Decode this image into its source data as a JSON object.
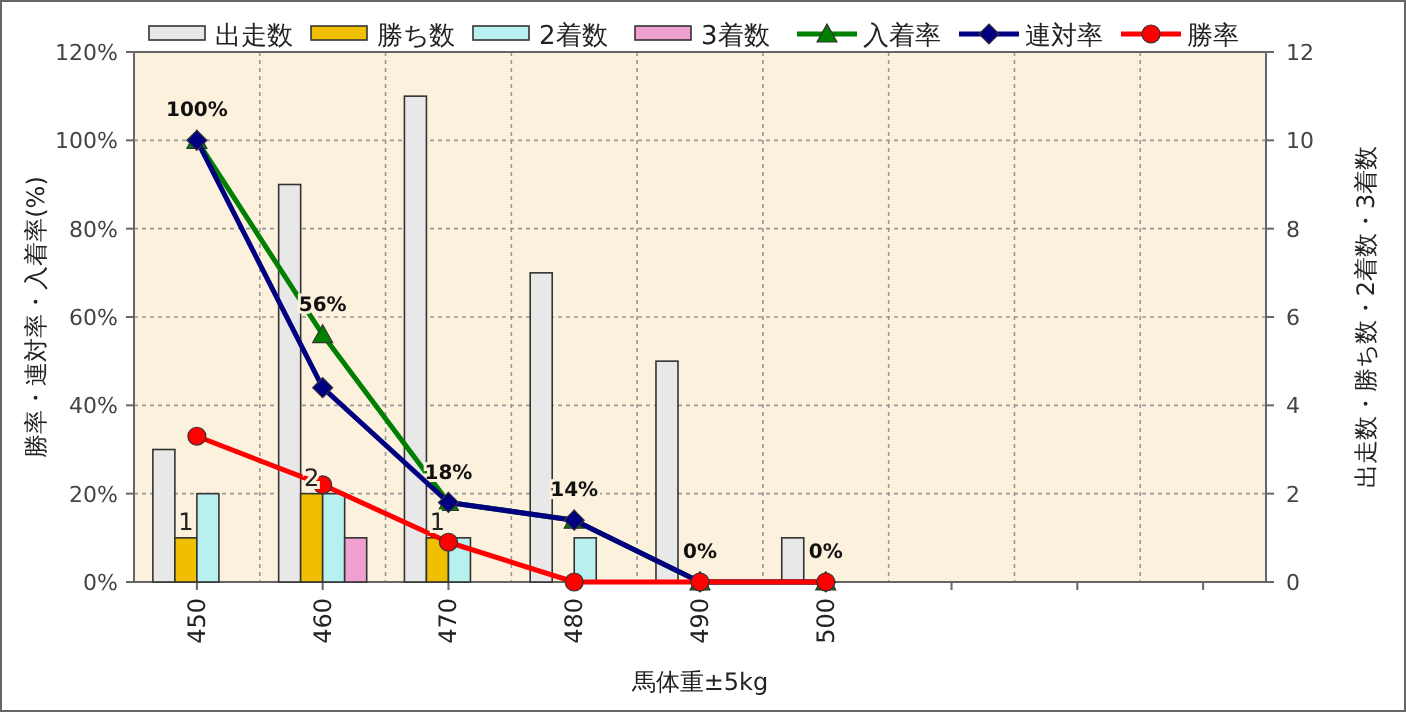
{
  "chart_data": {
    "type": "bar",
    "xlabel": "馬体重±5kg",
    "ylabel": "勝率・連対率・入着率(%)",
    "y2label": "出走数・勝ち数・2着数・3着数",
    "categories": [
      "450",
      "460",
      "470",
      "480",
      "490",
      "500",
      null,
      null,
      null
    ],
    "series": [
      {
        "name": "出走数",
        "type": "bar",
        "axis": "y2",
        "color": "#e8e8e8",
        "values": [
          3,
          9,
          11,
          7,
          5,
          1,
          null,
          null,
          null
        ]
      },
      {
        "name": "勝ち数",
        "type": "bar",
        "axis": "y2",
        "color": "#f0c000",
        "values": [
          1,
          2,
          1,
          0,
          0,
          0,
          null,
          null,
          null
        ],
        "value_labels": [
          "1",
          "2",
          "1",
          null,
          null,
          null,
          null,
          null,
          null
        ]
      },
      {
        "name": "2着数",
        "type": "bar",
        "axis": "y2",
        "color": "#b8f0f0",
        "values": [
          2,
          2,
          1,
          1,
          0,
          0,
          null,
          null,
          null
        ]
      },
      {
        "name": "3着数",
        "type": "bar",
        "axis": "y2",
        "color": "#f0a0d0",
        "values": [
          0,
          1,
          0,
          0,
          0,
          0,
          null,
          null,
          null
        ]
      },
      {
        "name": "入着率",
        "type": "line",
        "color": "#008000",
        "marker": "triangle",
        "values": [
          100,
          56,
          18,
          14,
          0,
          0,
          null,
          null,
          null
        ],
        "value_labels": [
          "100%",
          "56%",
          "18%",
          "14%",
          "0%",
          "0%",
          null,
          null,
          null
        ]
      },
      {
        "name": "連対率",
        "type": "line",
        "color": "#000080",
        "marker": "diamond",
        "values": [
          100,
          44,
          18,
          14,
          0,
          0,
          null,
          null,
          null
        ]
      },
      {
        "name": "勝率",
        "type": "line",
        "color": "#ff0000",
        "marker": "circle",
        "values": [
          33,
          22,
          9,
          0,
          0,
          0,
          null,
          null,
          null
        ]
      }
    ],
    "ylim": [
      0,
      120
    ],
    "yticks": [
      {
        "value": 0,
        "label": "0%"
      },
      {
        "value": 20,
        "label": "20%"
      },
      {
        "value": 40,
        "label": "40%"
      },
      {
        "value": 60,
        "label": "60%"
      },
      {
        "value": 80,
        "label": "80%"
      },
      {
        "value": 100,
        "label": "100%"
      },
      {
        "value": 120,
        "label": "120%"
      }
    ],
    "y2lim": [
      0,
      12
    ],
    "y2ticks": [
      0,
      2,
      4,
      6,
      8,
      10,
      12
    ],
    "grid": true,
    "legend": "top"
  }
}
